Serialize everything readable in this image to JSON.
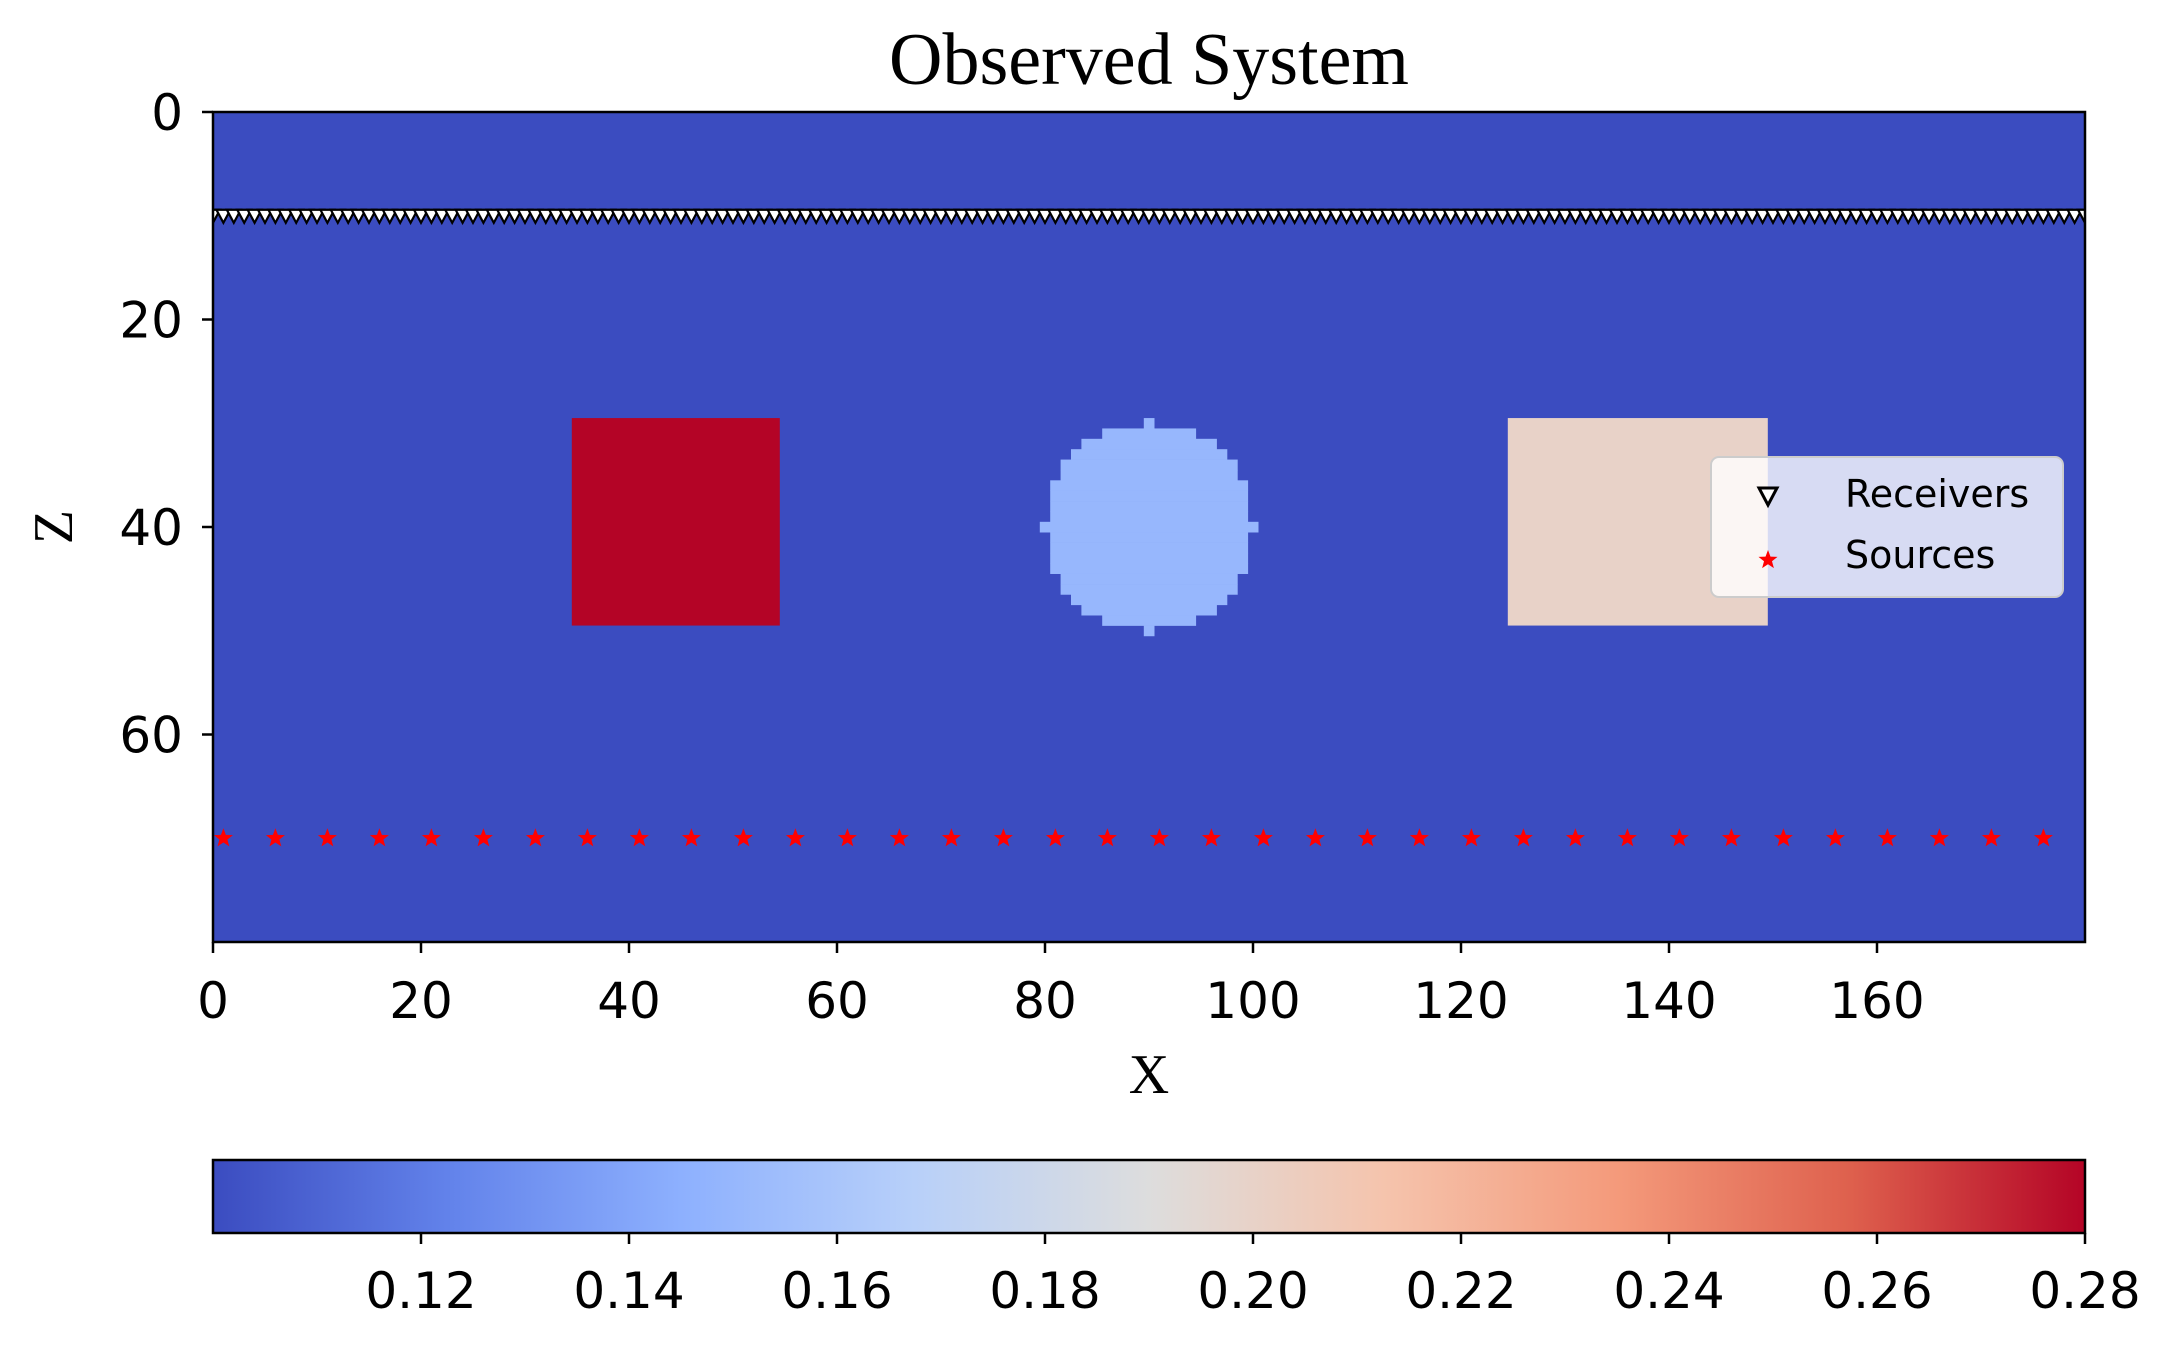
{
  "chart_data": {
    "type": "heatmap",
    "title": "Observed System",
    "xlabel": "X",
    "ylabel": "Z",
    "xlim": [
      0,
      180
    ],
    "ylim": [
      80,
      0
    ],
    "x_ticks": [
      "0",
      "20",
      "40",
      "60",
      "80",
      "100",
      "120",
      "140",
      "160"
    ],
    "y_ticks": [
      "0",
      "20",
      "40",
      "60"
    ],
    "background_value": 0.1,
    "objects": [
      {
        "shape": "rectangle",
        "x_range": [
          35,
          55
        ],
        "z_range": [
          30,
          50
        ],
        "value": 0.28
      },
      {
        "shape": "circle",
        "center": [
          90,
          40
        ],
        "radius": 10,
        "value": 0.15
      },
      {
        "shape": "rectangle",
        "x_range": [
          125,
          150
        ],
        "z_range": [
          30,
          50
        ],
        "value": 0.2
      }
    ],
    "receivers": {
      "name": "Receivers",
      "marker": "triangle-down-icon",
      "z": 10,
      "x_start": 0,
      "x_end": 180,
      "x_step": 1
    },
    "sources": {
      "name": "Sources",
      "marker": "star-icon",
      "z": 70,
      "x_values": [
        1,
        6,
        11,
        16,
        21,
        26,
        31,
        36,
        41,
        46,
        51,
        56,
        61,
        66,
        71,
        76,
        81,
        86,
        91,
        96,
        101,
        106,
        111,
        116,
        121,
        126,
        131,
        136,
        141,
        146,
        151,
        156,
        161,
        166,
        171,
        176
      ]
    },
    "legend": {
      "placement": "right",
      "entries": [
        "Receivers",
        "Sources"
      ]
    },
    "colorbar": {
      "orientation": "horizontal",
      "colormap": "coolwarm",
      "range": [
        0.1,
        0.28
      ],
      "ticks": [
        "0.12",
        "0.14",
        "0.16",
        "0.18",
        "0.20",
        "0.22",
        "0.24",
        "0.26",
        "0.28"
      ]
    },
    "colors": {
      "source": "#ff0000",
      "receiver_edge": "#000000"
    },
    "grid": false
  }
}
